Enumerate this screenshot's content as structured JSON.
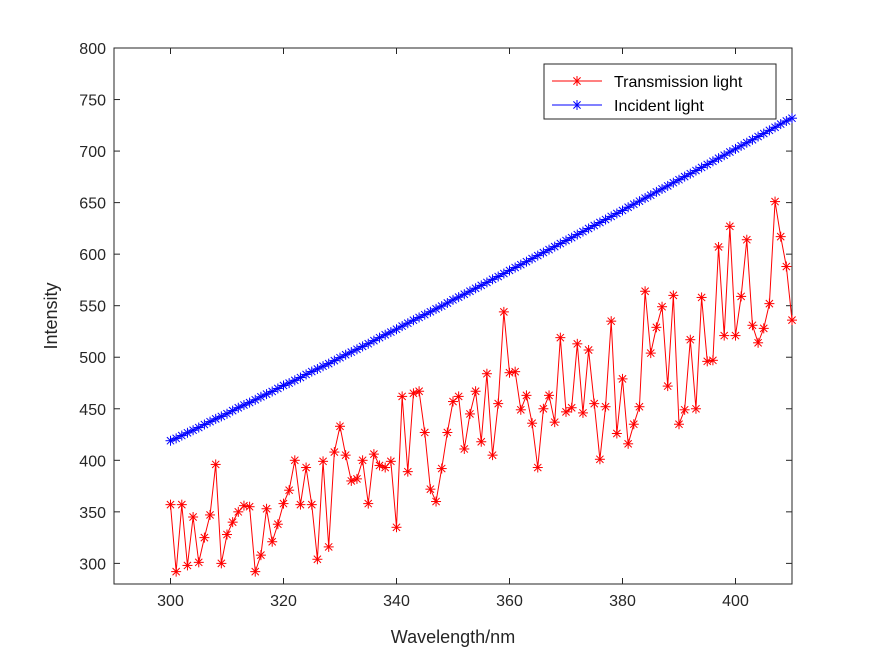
{
  "chart_data": {
    "type": "line",
    "title": "",
    "xlabel": "Wavelength/nm",
    "ylabel": "Intensity",
    "xlim": [
      290,
      410
    ],
    "ylim": [
      280,
      800
    ],
    "xticks": [
      "300",
      "320",
      "340",
      "360",
      "380",
      "400"
    ],
    "yticks": [
      "300",
      "350",
      "400",
      "450",
      "500",
      "550",
      "600",
      "650",
      "700",
      "750",
      "800"
    ],
    "grid": false,
    "legend_position": "top-right",
    "x": [
      300,
      301,
      302,
      303,
      304,
      305,
      306,
      307,
      308,
      309,
      310,
      311,
      312,
      313,
      314,
      315,
      316,
      317,
      318,
      319,
      320,
      321,
      322,
      323,
      324,
      325,
      326,
      327,
      328,
      329,
      330,
      331,
      332,
      333,
      334,
      335,
      336,
      337,
      338,
      339,
      340,
      341,
      342,
      343,
      344,
      345,
      346,
      347,
      348,
      349,
      350,
      351,
      352,
      353,
      354,
      355,
      356,
      357,
      358,
      359,
      360,
      361,
      362,
      363,
      364,
      365,
      366,
      367,
      368,
      369,
      370,
      371,
      372,
      373,
      374,
      375,
      376,
      377,
      378,
      379,
      380,
      381,
      382,
      383,
      384,
      385,
      386,
      387,
      388,
      389,
      390,
      391,
      392,
      393,
      394,
      395,
      396,
      397,
      398,
      399,
      400,
      401,
      402,
      403,
      404,
      405,
      406,
      407,
      408,
      409,
      410
    ],
    "series": [
      {
        "name": "Transmission light",
        "color": "#ff0000",
        "marker": "asterisk",
        "values": [
          357,
          292,
          357,
          298,
          345,
          301,
          325,
          347,
          396,
          300,
          328,
          340,
          350,
          356,
          355,
          292,
          308,
          353,
          321,
          338,
          358,
          371,
          400,
          357,
          393,
          357,
          304,
          399,
          316,
          408,
          433,
          405,
          380,
          382,
          400,
          358,
          406,
          395,
          393,
          399,
          335,
          462,
          389,
          465,
          467,
          427,
          372,
          360,
          392,
          427,
          457,
          462,
          411,
          445,
          467,
          418,
          484,
          405,
          455,
          544,
          485,
          486,
          449,
          463,
          436,
          393,
          450,
          463,
          437,
          519,
          447,
          451,
          513,
          446,
          507,
          455,
          401,
          452,
          535,
          426,
          479,
          416,
          435,
          452,
          564,
          504,
          529,
          549,
          472,
          560,
          435,
          449,
          517,
          450,
          558,
          496,
          497,
          607,
          521,
          627,
          521,
          559,
          614,
          531,
          514,
          528,
          552,
          651,
          617,
          588,
          536
        ]
      },
      {
        "name": "Incident light",
        "color": "#0000ff",
        "marker": "asterisk",
        "values": [
          419.0,
          421.3,
          424.0,
          426.7,
          429.2,
          431.8,
          434.7,
          437.5,
          440.2,
          442.6,
          445.2,
          448.2,
          451.0,
          453.6,
          456.0,
          458.7,
          461.6,
          464.2,
          466.8,
          469.7,
          472.6,
          474.9,
          477.6,
          480.3,
          483.3,
          486.1,
          488.6,
          491.3,
          493.8,
          496.7,
          499.6,
          502.4,
          505.0,
          507.7,
          510.5,
          513.1,
          516.1,
          519.0,
          521.8,
          524.4,
          527.2,
          530.2,
          533.0,
          535.9,
          538.6,
          541.3,
          544.1,
          546.9,
          549.6,
          552.6,
          555.7,
          558.3,
          561.1,
          564.0,
          566.9,
          569.7,
          572.6,
          575.6,
          578.3,
          581.2,
          584.2,
          587.0,
          589.8,
          592.7,
          595.7,
          598.6,
          601.5,
          604.4,
          607.3,
          610.3,
          613.2,
          616.0,
          619.0,
          621.9,
          624.9,
          627.8,
          630.7,
          633.6,
          636.6,
          639.5,
          642.4,
          645.5,
          648.4,
          651.4,
          654.4,
          657.2,
          660.4,
          663.3,
          666.2,
          669.3,
          672.2,
          675.2,
          678.1,
          681.1,
          684.1,
          687.0,
          690.1,
          693.1,
          696.0,
          699.1,
          702.1,
          705.1,
          708.1,
          711.0,
          714.1,
          717.0,
          720.1,
          723.1,
          726.2,
          729.2,
          731.9
        ]
      }
    ]
  }
}
